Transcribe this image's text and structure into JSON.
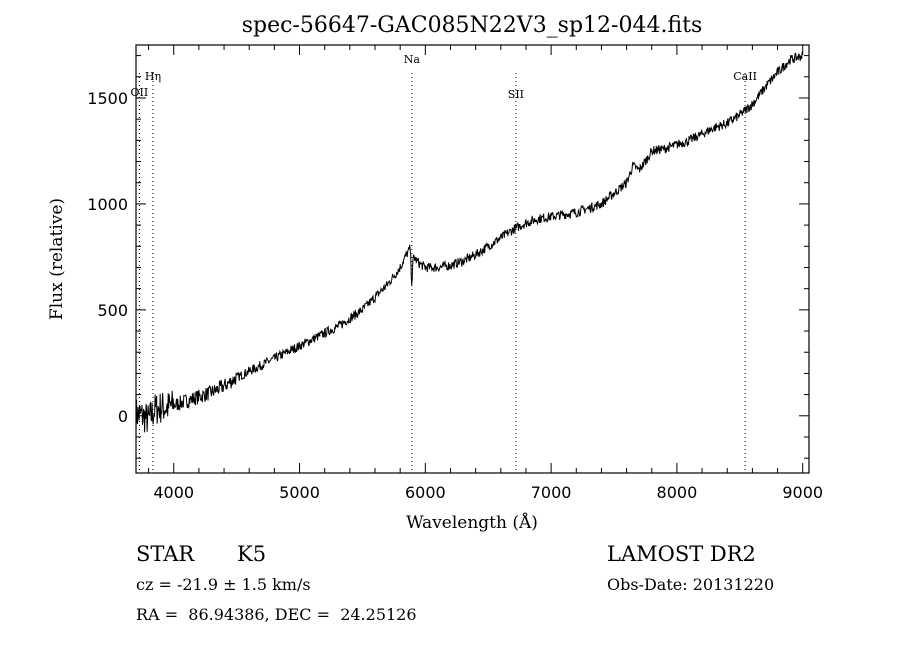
{
  "chart_data": {
    "type": "line",
    "title": "spec-56647-GAC085N22V3_sp12-044.fits",
    "xlabel": "Wavelength (Å)",
    "ylabel": "Flux (relative)",
    "xlim": [
      3700,
      9050
    ],
    "ylim": [
      -270,
      1750
    ],
    "xticks": [
      "4000",
      "5000",
      "6000",
      "7000",
      "8000",
      "9000"
    ],
    "xtick_values": [
      4000,
      5000,
      6000,
      7000,
      8000,
      9000
    ],
    "yticks": [
      "0",
      "500",
      "1000",
      "1500"
    ],
    "ytick_values": [
      0,
      500,
      1000,
      1500
    ],
    "grid": false,
    "line_color": "#000000",
    "lines": [
      {
        "label": "Hη",
        "x": 3835
      },
      {
        "label": "OII",
        "x": 3727
      },
      {
        "label": "Na",
        "x": 5893
      },
      {
        "label": "SII",
        "x": 6720
      },
      {
        "label": "CaII",
        "x": 8542
      }
    ],
    "series": [
      {
        "x": [
          3700,
          3750,
          3800,
          3850,
          3900,
          3950,
          4000,
          4050,
          4100,
          4150,
          4200,
          4300,
          4400,
          4500,
          4600,
          4700,
          4800,
          4900,
          5000,
          5100,
          5200,
          5300,
          5400,
          5500,
          5600,
          5700,
          5800,
          5850,
          5880,
          5893,
          5905,
          5950,
          6000,
          6100,
          6200,
          6300,
          6400,
          6500,
          6600,
          6700,
          6800,
          6900,
          7000,
          7100,
          7200,
          7300,
          7400,
          7500,
          7600,
          7650,
          7700,
          7750,
          7800,
          7900,
          8000,
          8100,
          8200,
          8300,
          8400,
          8500,
          8540,
          8600,
          8700,
          8800,
          8900,
          9000
        ],
        "y": [
          10,
          0,
          -20,
          30,
          40,
          40,
          50,
          60,
          70,
          80,
          90,
          110,
          140,
          180,
          210,
          240,
          270,
          300,
          330,
          360,
          390,
          420,
          460,
          500,
          560,
          620,
          700,
          760,
          790,
          620,
          750,
          720,
          700,
          700,
          710,
          730,
          760,
          800,
          840,
          880,
          910,
          930,
          940,
          950,
          960,
          980,
          1000,
          1050,
          1100,
          1180,
          1160,
          1200,
          1250,
          1260,
          1280,
          1300,
          1330,
          1360,
          1380,
          1420,
          1440,
          1470,
          1550,
          1620,
          1680,
          1700
        ]
      }
    ]
  },
  "info": {
    "object_class": "STAR",
    "subclass": "K5",
    "survey": "LAMOST DR2",
    "redshift": "cz = -21.9 ± 1.5 km/s",
    "obs_date": "Obs-Date: 20131220",
    "coords": "RA =  86.94386, DEC =  24.25126"
  }
}
